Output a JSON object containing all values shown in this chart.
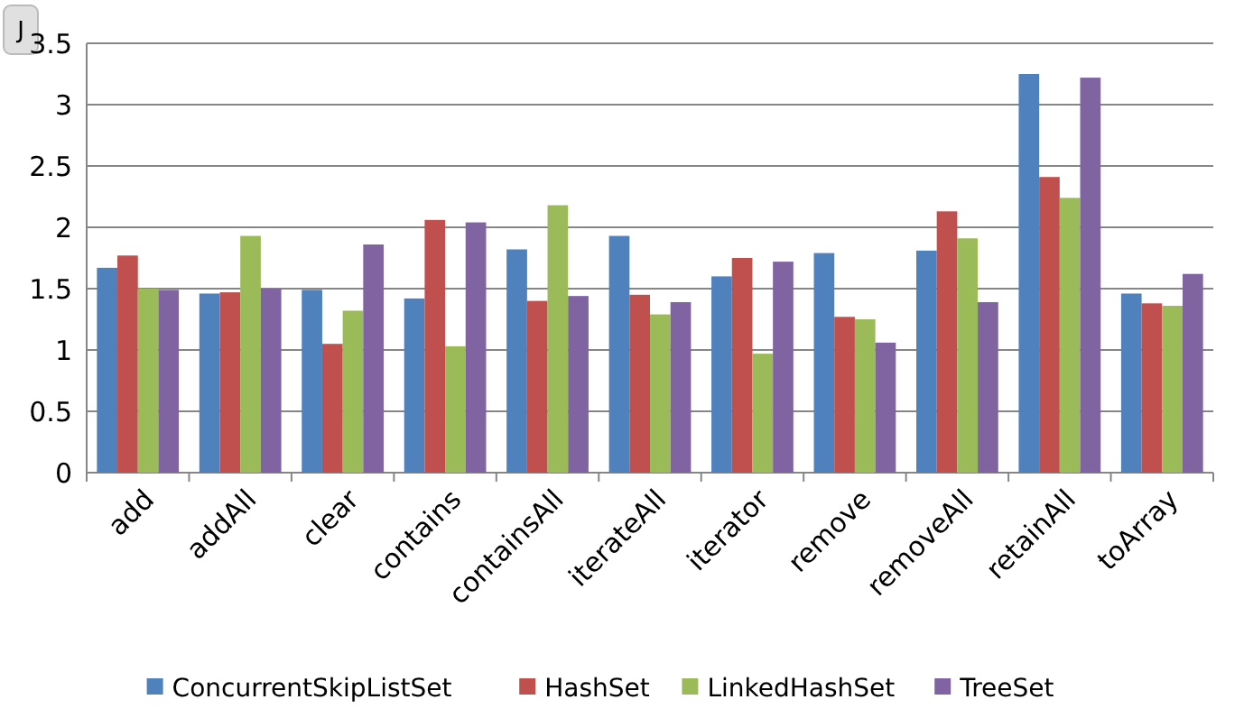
{
  "chart_data": {
    "type": "bar",
    "ylabel": "J",
    "categories": [
      "add",
      "addAll",
      "clear",
      "contains",
      "containsAll",
      "iterateAll",
      "iterator",
      "remove",
      "removeAll",
      "retainAll",
      "toArray"
    ],
    "series": [
      {
        "name": "ConcurrentSkipListSet",
        "color": "#4f81bd",
        "values": [
          1.67,
          1.46,
          1.49,
          1.42,
          1.82,
          1.93,
          1.6,
          1.79,
          1.81,
          3.25,
          1.46
        ]
      },
      {
        "name": "HashSet",
        "color": "#c0504d",
        "values": [
          1.77,
          1.47,
          1.05,
          2.06,
          1.4,
          1.45,
          1.75,
          1.27,
          2.13,
          2.41,
          1.38
        ]
      },
      {
        "name": "LinkedHashSet",
        "color": "#9bbb59",
        "values": [
          1.5,
          1.93,
          1.32,
          1.03,
          2.18,
          1.29,
          0.97,
          1.25,
          1.91,
          2.24,
          1.36
        ]
      },
      {
        "name": "TreeSet",
        "color": "#8064a2",
        "values": [
          1.49,
          1.5,
          1.86,
          2.04,
          1.44,
          1.39,
          1.72,
          1.06,
          1.39,
          3.22,
          1.62
        ]
      }
    ],
    "ylim": [
      0,
      3.5
    ],
    "yticks": [
      0,
      0.5,
      1,
      1.5,
      2,
      2.5,
      3,
      3.5
    ],
    "grid": "y",
    "legend": "bottom"
  }
}
